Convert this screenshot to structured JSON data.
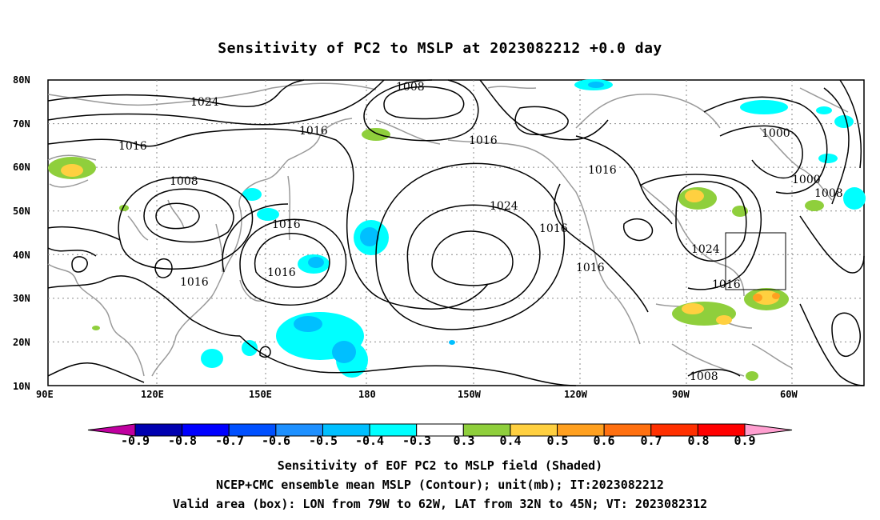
{
  "title": "Sensitivity of PC2 to MSLP at 2023082212 +0.0 day",
  "lat_labels": [
    "80N",
    "70N",
    "60N",
    "50N",
    "40N",
    "30N",
    "20N",
    "10N"
  ],
  "lon_labels": [
    "90E",
    "120E",
    "150E",
    "180",
    "150W",
    "120W",
    "90W",
    "60W"
  ],
  "contour_labels": [
    "1024",
    "1016",
    "1016",
    "1008",
    "1008",
    "1016",
    "1016",
    "1016",
    "1016",
    "1024",
    "1016",
    "1016",
    "1016",
    "1000",
    "1000",
    "1008",
    "1024",
    "1016",
    "1008",
    "1008"
  ],
  "colorbar": {
    "labels": [
      "-0.9",
      "-0.8",
      "-0.7",
      "-0.6",
      "-0.5",
      "-0.4",
      "-0.3",
      "0.3",
      "0.4",
      "0.5",
      "0.6",
      "0.7",
      "0.8",
      "0.9"
    ],
    "colors": [
      "#c000a0",
      "#0000b0",
      "#0000ff",
      "#0050ff",
      "#1e90ff",
      "#00bfff",
      "#00ffff",
      "#ffffff",
      "#8fcf3c",
      "#ffd040",
      "#ffa020",
      "#ff7010",
      "#ff3000",
      "#ff0000",
      "#ff9fd0"
    ]
  },
  "caption": {
    "line1": "Sensitivity of EOF PC2 to MSLP field (Shaded)",
    "line2": "NCEP+CMC ensemble mean MSLP (Contour); unit(mb); IT:2023082212",
    "line3": "Valid area (box): LON from 79W to 62W, LAT from 32N to 45N; VT: 2023082312"
  }
}
